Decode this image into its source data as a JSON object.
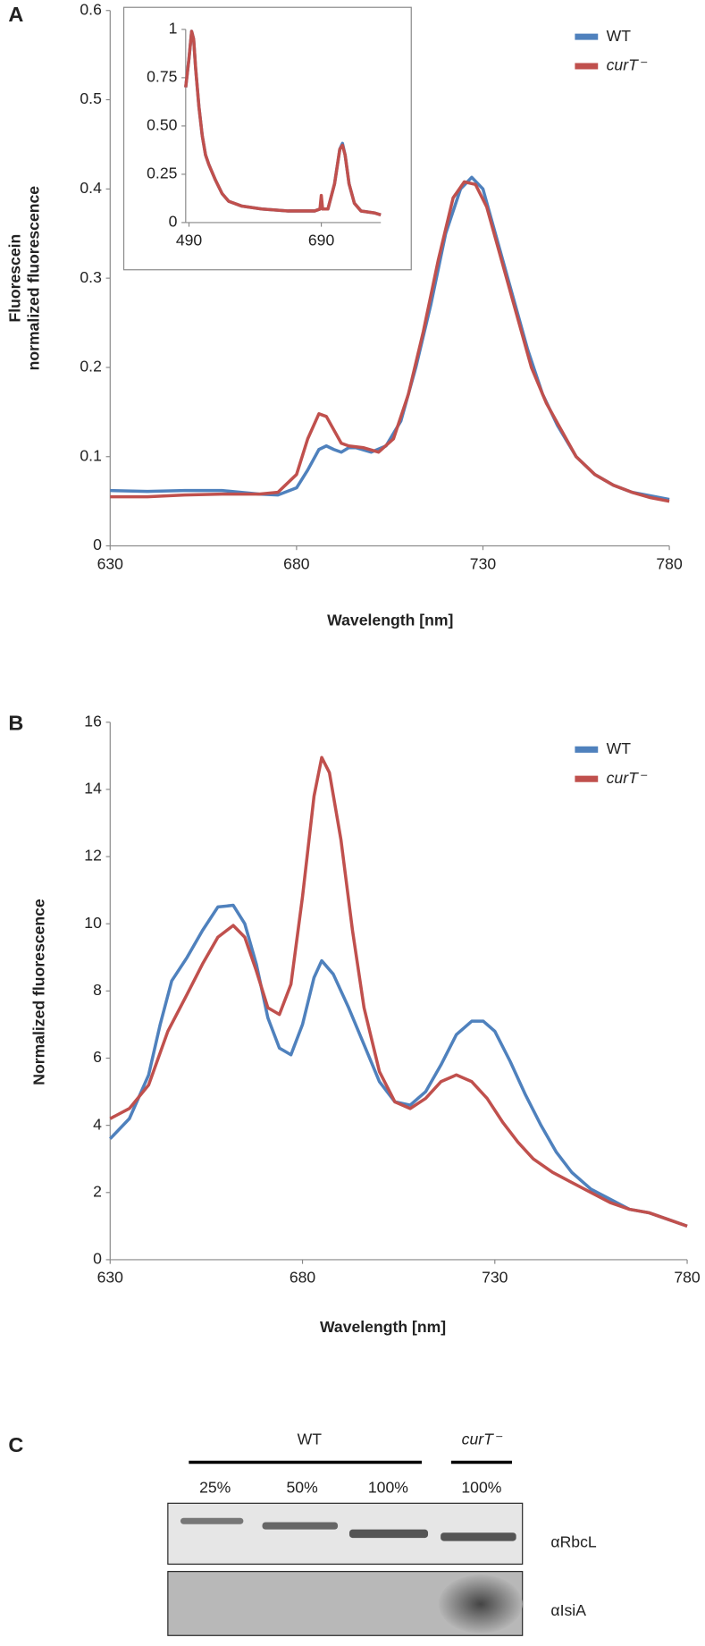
{
  "chart_data": [
    {
      "type": "line",
      "panel": "A",
      "xlabel": "Wavelength [nm]",
      "ylabel": [
        "Fluorescein",
        "normalized fluorescence"
      ],
      "xlim": [
        630,
        780
      ],
      "ylim": [
        0,
        0.6
      ],
      "xticks": [
        630,
        680,
        730,
        780
      ],
      "yticks": [
        0,
        0.1,
        0.2,
        0.3,
        0.4,
        0.5,
        0.6
      ],
      "legend": "upper right",
      "series": [
        {
          "name": "WT",
          "color": "#4f81bd",
          "x": [
            630,
            640,
            650,
            660,
            670,
            675,
            680,
            683,
            686,
            688,
            690,
            692,
            694,
            696,
            700,
            704,
            708,
            712,
            716,
            720,
            724,
            727,
            730,
            734,
            738,
            742,
            746,
            750,
            755,
            760,
            765,
            770,
            775,
            780
          ],
          "values": [
            0.062,
            0.061,
            0.062,
            0.062,
            0.058,
            0.057,
            0.065,
            0.085,
            0.108,
            0.112,
            0.108,
            0.105,
            0.11,
            0.11,
            0.105,
            0.112,
            0.14,
            0.2,
            0.27,
            0.35,
            0.4,
            0.413,
            0.4,
            0.34,
            0.28,
            0.22,
            0.17,
            0.135,
            0.1,
            0.08,
            0.068,
            0.06,
            0.056,
            0.052
          ]
        },
        {
          "name": "curT⁻",
          "color": "#c0504d",
          "x": [
            630,
            640,
            650,
            660,
            670,
            675,
            680,
            683,
            686,
            688,
            690,
            692,
            694,
            698,
            702,
            706,
            710,
            714,
            718,
            722,
            725,
            728,
            731,
            735,
            739,
            743,
            747,
            751,
            755,
            760,
            765,
            770,
            775,
            780
          ],
          "values": [
            0.055,
            0.055,
            0.057,
            0.058,
            0.058,
            0.06,
            0.08,
            0.12,
            0.148,
            0.145,
            0.13,
            0.115,
            0.112,
            0.11,
            0.105,
            0.12,
            0.17,
            0.24,
            0.32,
            0.39,
            0.408,
            0.405,
            0.38,
            0.32,
            0.26,
            0.2,
            0.16,
            0.13,
            0.1,
            0.08,
            0.068,
            0.06,
            0.054,
            0.05
          ]
        }
      ]
    },
    {
      "type": "line",
      "xlim": [
        485,
        780
      ],
      "ylim": [
        0,
        1
      ],
      "xticks": [
        490,
        690
      ],
      "yticks": [
        0,
        0.25,
        {
          "value": 0.5,
          "label": "0.50"
        },
        0.75,
        1
      ],
      "x": [
        485,
        490,
        494,
        497,
        500,
        505,
        510,
        515,
        520,
        530,
        540,
        550,
        570,
        600,
        640,
        680,
        688,
        690,
        692,
        700,
        710,
        718,
        722,
        726,
        732,
        740,
        750,
        770,
        780
      ],
      "series": [
        {
          "color": "#4f81bd",
          "values": [
            0.7,
            0.85,
            0.99,
            0.95,
            0.8,
            0.6,
            0.45,
            0.35,
            0.3,
            0.22,
            0.15,
            0.11,
            0.085,
            0.07,
            0.06,
            0.06,
            0.07,
            0.1,
            0.07,
            0.07,
            0.2,
            0.38,
            0.41,
            0.35,
            0.2,
            0.1,
            0.06,
            0.05,
            0.04
          ]
        },
        {
          "color": "#c0504d",
          "values": [
            0.7,
            0.85,
            0.99,
            0.95,
            0.8,
            0.6,
            0.45,
            0.35,
            0.3,
            0.22,
            0.15,
            0.11,
            0.085,
            0.07,
            0.06,
            0.06,
            0.07,
            0.14,
            0.07,
            0.07,
            0.2,
            0.38,
            0.4,
            0.35,
            0.2,
            0.1,
            0.06,
            0.05,
            0.04
          ]
        }
      ]
    },
    {
      "type": "line",
      "panel": "B",
      "xlabel": "Wavelength [nm]",
      "ylabel": "Normalized fluorescence",
      "xlim": [
        630,
        780
      ],
      "ylim": [
        0,
        16
      ],
      "xticks": [
        630,
        680,
        730,
        780
      ],
      "yticks": [
        0,
        2,
        4,
        6,
        8,
        10,
        12,
        14,
        16
      ],
      "legend": "upper right",
      "series": [
        {
          "name": "WT",
          "color": "#4f81bd",
          "x": [
            630,
            635,
            640,
            643,
            646,
            650,
            654,
            658,
            662,
            665,
            668,
            671,
            674,
            677,
            680,
            683,
            685,
            688,
            692,
            696,
            700,
            704,
            708,
            712,
            716,
            720,
            724,
            727,
            730,
            734,
            738,
            742,
            746,
            750,
            755,
            760,
            765,
            770,
            775,
            780
          ],
          "values": [
            3.6,
            4.2,
            5.5,
            7,
            8.3,
            9,
            9.8,
            10.5,
            10.55,
            10,
            8.8,
            7.2,
            6.3,
            6.1,
            7,
            8.4,
            8.9,
            8.5,
            7.5,
            6.4,
            5.3,
            4.7,
            4.6,
            5,
            5.8,
            6.7,
            7.1,
            7.1,
            6.8,
            5.9,
            4.9,
            4,
            3.2,
            2.6,
            2.1,
            1.8,
            1.5,
            1.4,
            1.2,
            1.0
          ]
        },
        {
          "name": "curT⁻",
          "color": "#c0504d",
          "x": [
            630,
            635,
            640,
            645,
            650,
            654,
            658,
            662,
            665,
            668,
            671,
            674,
            677,
            680,
            683,
            685,
            687,
            690,
            693,
            696,
            700,
            704,
            708,
            712,
            716,
            720,
            724,
            728,
            732,
            736,
            740,
            745,
            750,
            755,
            760,
            765,
            770,
            775,
            780
          ],
          "values": [
            4.2,
            4.5,
            5.2,
            6.8,
            7.9,
            8.8,
            9.6,
            9.95,
            9.6,
            8.6,
            7.5,
            7.3,
            8.2,
            10.8,
            13.8,
            14.95,
            14.5,
            12.5,
            9.8,
            7.5,
            5.6,
            4.7,
            4.5,
            4.8,
            5.3,
            5.5,
            5.3,
            4.8,
            4.1,
            3.5,
            3.0,
            2.6,
            2.3,
            2.0,
            1.7,
            1.5,
            1.4,
            1.2,
            1.0
          ]
        }
      ]
    }
  ],
  "blot": {
    "panel": "C",
    "groups": [
      {
        "label": "WT",
        "lanes": [
          "25%",
          "50%",
          "100%"
        ]
      },
      {
        "label": "curT⁻",
        "lanes": [
          "100%"
        ]
      }
    ],
    "antibodies": [
      "αRbcL",
      "αIsiA"
    ]
  }
}
